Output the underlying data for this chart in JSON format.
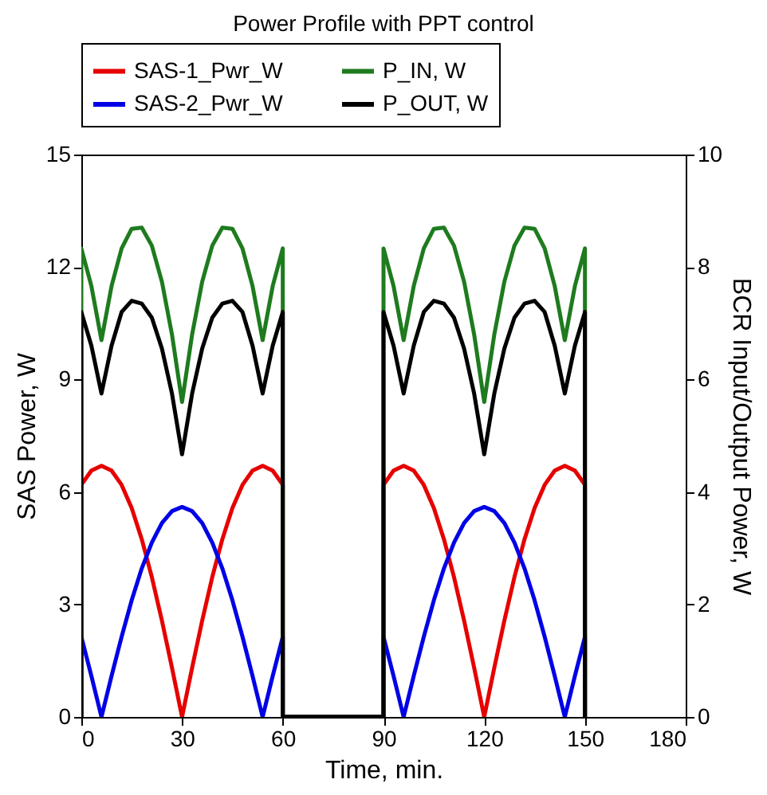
{
  "chart_data": {
    "type": "line",
    "title": "Power Profile with PPT control",
    "xlabel": "Time, min.",
    "ylabel": "SAS Power, W",
    "y2label": "BCR Input/Output Power, W",
    "x": [
      0,
      0,
      3,
      6,
      9,
      12,
      15,
      18,
      21,
      24,
      27,
      30,
      33,
      36,
      39,
      42,
      45,
      48,
      51,
      54,
      57,
      60,
      60,
      90,
      90,
      93,
      96,
      99,
      102,
      105,
      108,
      111,
      114,
      117,
      120,
      123,
      126,
      129,
      132,
      135,
      138,
      141,
      144,
      147,
      150,
      150
    ],
    "series": [
      {
        "name": "SAS-1_Pwr_W",
        "color": "#e60000",
        "values": [
          0,
          6.19,
          6.57,
          6.7,
          6.57,
          6.19,
          5.57,
          4.74,
          3.73,
          2.57,
          1.31,
          0,
          1.31,
          2.57,
          3.73,
          4.74,
          5.57,
          6.19,
          6.57,
          6.7,
          6.57,
          6.19,
          0,
          0,
          6.19,
          6.57,
          6.7,
          6.57,
          6.19,
          5.57,
          4.74,
          3.73,
          2.57,
          1.31,
          0,
          1.31,
          2.57,
          3.73,
          4.74,
          5.57,
          6.19,
          6.57,
          6.7,
          6.57,
          6.19,
          0
        ]
      },
      {
        "name": "SAS-2_Pwr_W",
        "color": "#0000e6",
        "values": [
          0,
          2.14,
          1.09,
          0,
          1.09,
          2.14,
          3.11,
          3.96,
          4.65,
          5.17,
          5.49,
          5.6,
          5.49,
          5.17,
          4.65,
          3.96,
          3.11,
          2.14,
          1.09,
          0,
          1.09,
          2.14,
          0,
          0,
          2.14,
          1.09,
          0,
          1.09,
          2.14,
          3.11,
          3.96,
          4.65,
          5.17,
          5.49,
          5.6,
          5.49,
          5.17,
          4.65,
          3.96,
          3.11,
          2.14,
          1.09,
          0,
          1.09,
          2.14,
          0
        ]
      },
      {
        "name": "P_IN, W",
        "color": "#1e7b1e",
        "axis": "y2",
        "values": [
          0,
          8.33,
          7.66,
          6.7,
          7.66,
          8.33,
          8.68,
          8.7,
          8.38,
          7.74,
          6.8,
          5.6,
          6.8,
          7.74,
          8.38,
          8.7,
          8.68,
          8.33,
          7.66,
          6.7,
          7.66,
          8.33,
          0,
          0,
          8.33,
          7.66,
          6.7,
          7.66,
          8.33,
          8.68,
          8.7,
          8.38,
          7.74,
          6.8,
          5.6,
          6.8,
          7.74,
          8.38,
          8.7,
          8.68,
          8.33,
          7.66,
          6.7,
          7.66,
          8.33,
          0
        ]
      },
      {
        "name": "P_OUT, W",
        "color": "#000000",
        "axis": "y2",
        "values": [
          0,
          7.2,
          6.6,
          5.75,
          6.6,
          7.2,
          7.4,
          7.35,
          7.1,
          6.55,
          5.75,
          4.67,
          5.75,
          6.55,
          7.1,
          7.35,
          7.4,
          7.2,
          6.6,
          5.75,
          6.6,
          7.2,
          0,
          0,
          7.2,
          6.6,
          5.75,
          6.6,
          7.2,
          7.4,
          7.35,
          7.1,
          6.55,
          5.75,
          4.67,
          5.75,
          6.55,
          7.1,
          7.35,
          7.4,
          7.2,
          6.6,
          5.75,
          6.6,
          7.2,
          0
        ]
      }
    ],
    "xlim": [
      0,
      180
    ],
    "xticks": [
      0,
      30,
      60,
      90,
      120,
      150,
      180
    ],
    "ylim": [
      0,
      15
    ],
    "yticks": [
      0,
      3,
      6,
      9,
      12,
      15
    ],
    "y2lim": [
      0,
      10
    ],
    "y2ticks": [
      0,
      2,
      4,
      6,
      8,
      10
    ],
    "legend": "top"
  }
}
